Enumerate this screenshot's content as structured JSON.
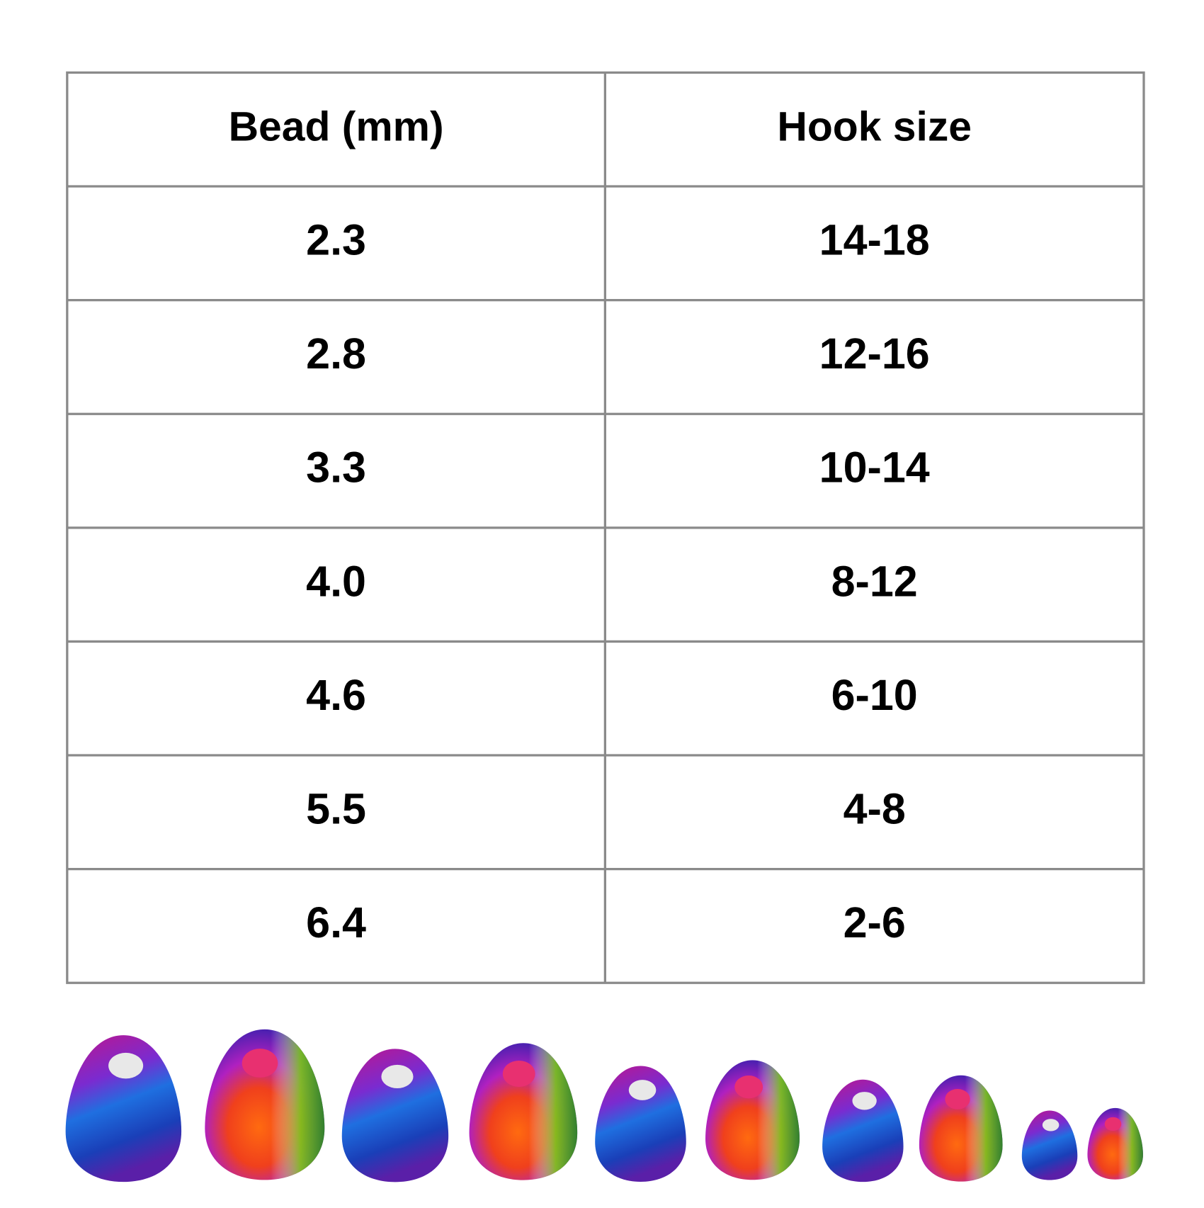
{
  "table": {
    "header": [
      "Bead (mm)",
      "Hook size"
    ],
    "rows": [
      [
        "2.3",
        "14-18"
      ],
      [
        "2.8",
        "12-16"
      ],
      [
        "3.3",
        "10-14"
      ],
      [
        "4.0",
        "8-12"
      ],
      [
        "4.6",
        "6-10"
      ],
      [
        "5.5",
        "4-8"
      ],
      [
        "6.4",
        "2-6"
      ]
    ]
  }
}
